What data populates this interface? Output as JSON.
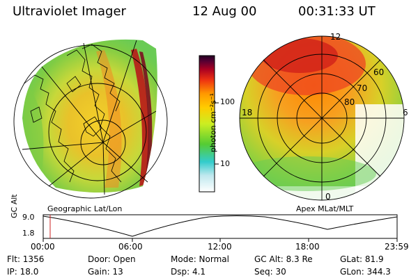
{
  "header": {
    "title": "Ultraviolet Imager",
    "date": "12 Aug 00",
    "time": "00:31:33 UT"
  },
  "colors": {
    "low": "#ffffff",
    "cyan": "#33cccc",
    "green": "#55cc33",
    "yellow": "#eeee22",
    "orange": "#ff9900",
    "red": "#dd1111",
    "darkred": "#880022",
    "purple": "#330033"
  },
  "colorbar": {
    "unit": "photon cm⁻²s⁻¹",
    "ticks": [
      "100",
      "10"
    ]
  },
  "geo_panel": {
    "label": "Geographic Lat/Lon"
  },
  "apex_panel": {
    "label": "Apex MLat/MLT",
    "mlt_labels": [
      "12",
      "18",
      "6",
      "0"
    ],
    "mlat_labels": [
      "60",
      "70",
      "80"
    ]
  },
  "altitude_plot": {
    "ylabel": "GC Alt",
    "y_ticks": [
      "9.0",
      "1.8"
    ],
    "x_ticks": [
      "00:00",
      "06:00",
      "12:00",
      "18:00",
      "23:59"
    ],
    "marker_time": "00:31:33"
  },
  "status": {
    "flt": "Flt:  1356",
    "ip": "IP:  18.0",
    "door": "Door:  Open",
    "gain": "Gain:  13",
    "mode": "Mode:  Normal",
    "dsp": "Dsp:       4.1",
    "gcalt": "GC Alt:  8.3 Re",
    "seq": "Seq:  30",
    "glat": "GLat:   81.9",
    "glon": "GLon:  344.3"
  }
}
